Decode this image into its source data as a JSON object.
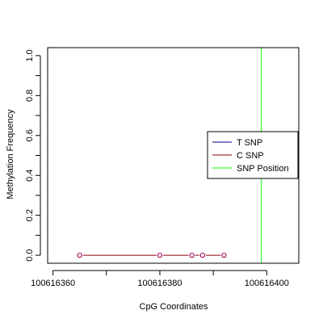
{
  "chart_data": {
    "type": "line",
    "title": "",
    "xlabel": "CpG Coordinates",
    "ylabel": "Methylation Frequency",
    "xlim": [
      100616359,
      100616406
    ],
    "ylim": [
      -0.04,
      1.04
    ],
    "x_ticks": [
      100616360,
      100616380,
      100616400
    ],
    "x_tick_labels": [
      "100616360",
      "100616380",
      "100616400"
    ],
    "y_ticks": [
      0.0,
      0.2,
      0.4,
      0.6,
      0.8,
      1.0
    ],
    "y_tick_labels": [
      "0.0",
      "0.2",
      "0.4",
      "0.6",
      "0.8",
      "1.0"
    ],
    "grid": false,
    "legend_position": "right",
    "series": [
      {
        "name": "T SNP",
        "color": "#00008b",
        "points": []
      },
      {
        "name": "C SNP",
        "color": "#8b0000",
        "points": [
          {
            "x": 100616365,
            "y": 0.0
          },
          {
            "x": 100616380,
            "y": 0.0
          },
          {
            "x": 100616386,
            "y": 0.0
          },
          {
            "x": 100616388,
            "y": 0.0
          },
          {
            "x": 100616392,
            "y": 0.0
          }
        ]
      }
    ],
    "vertical_lines": [
      {
        "name": "SNP Position",
        "x": 100616399,
        "color": "#00ff00"
      }
    ],
    "legend": [
      {
        "label": "T SNP",
        "color": "#00008b"
      },
      {
        "label": "C SNP",
        "color": "#8b0000"
      },
      {
        "label": "SNP Position",
        "color": "#00ff00"
      }
    ],
    "marker_color": "#a0005a"
  }
}
